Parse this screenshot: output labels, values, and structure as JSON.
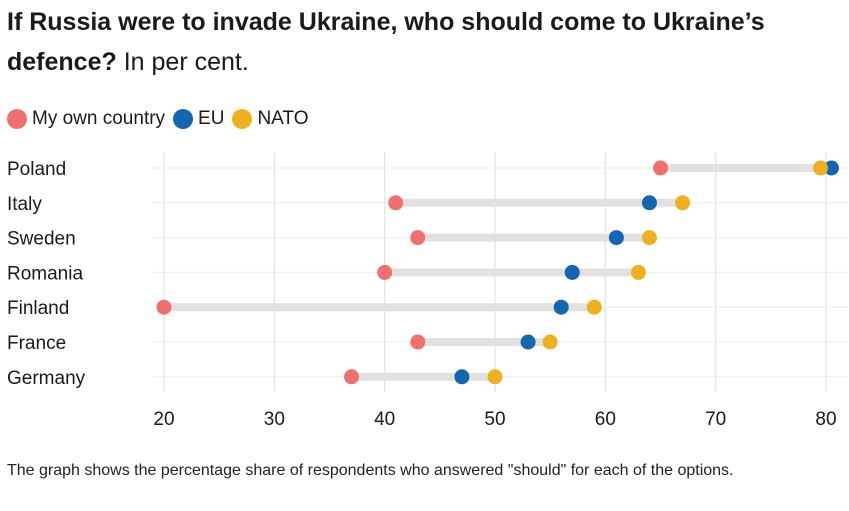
{
  "title": {
    "bold": "If Russia were to invade Ukraine, who should come to Ukraine’s defence?",
    "subtitle": "In per cent."
  },
  "note": "The graph shows the percentage share of respondents who answered \"should\" for each of the options.",
  "colors": {
    "own_country": "#f07070",
    "eu": "#1565b0",
    "nato": "#eeb020",
    "range_bar": "#e1e1e1",
    "grid": "#e4e4e4"
  },
  "chart_data": {
    "type": "dot-range",
    "categories": [
      "Poland",
      "Italy",
      "Sweden",
      "Romania",
      "Finland",
      "France",
      "Germany"
    ],
    "series": [
      {
        "name": "My own country",
        "color": "#f07070",
        "values": [
          65,
          41,
          43,
          40,
          20,
          43,
          37
        ]
      },
      {
        "name": "EU",
        "color": "#1565b0",
        "values": [
          80.5,
          64,
          61,
          57,
          56,
          53,
          47
        ]
      },
      {
        "name": "NATO",
        "color": "#eeb020",
        "values": [
          79.5,
          67,
          64,
          63,
          59,
          55,
          50
        ]
      }
    ],
    "x_ticks": [
      20,
      30,
      40,
      50,
      60,
      70,
      80
    ],
    "xlim": [
      20,
      80
    ],
    "grid": true,
    "legend": "top-left"
  }
}
